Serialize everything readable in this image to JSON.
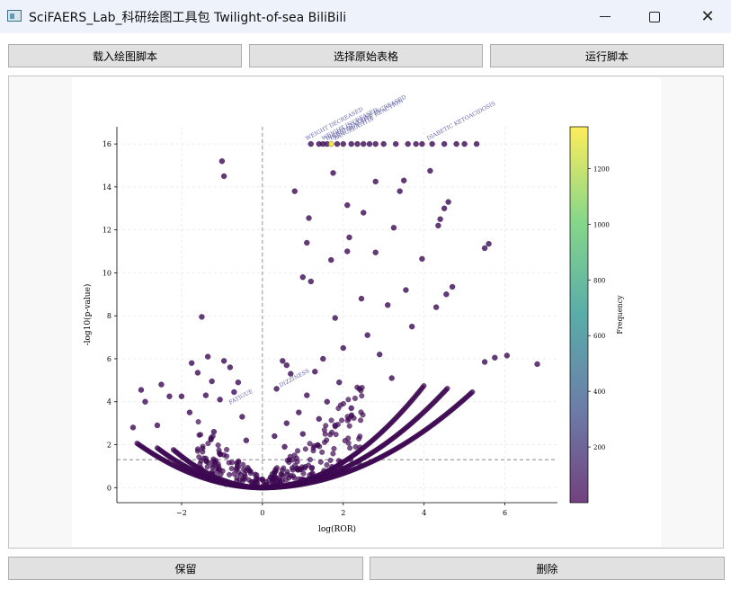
{
  "window": {
    "title": "SciFAERS_Lab_科研绘图工具包 Twilight-of-sea BiliBili",
    "minimize_icon": "minimize-icon",
    "maximize_icon": "maximize-icon",
    "close_icon": "close-icon"
  },
  "toolbar": {
    "load_script_label": "载入绘图脚本",
    "select_table_label": "选择原始表格",
    "run_script_label": "运行脚本"
  },
  "footer": {
    "save_label": "保留",
    "delete_label": "删除"
  },
  "chart_data": {
    "type": "scatter",
    "xlabel": "log(ROR)",
    "ylabel": "-log10(p-value)",
    "xlim": [
      -3.6,
      7.3
    ],
    "ylim": [
      -0.7,
      16.8
    ],
    "x_ticks": [
      -2,
      0,
      2,
      4,
      6
    ],
    "x_tick_labels": [
      "−2",
      "0",
      "2",
      "4",
      "6"
    ],
    "y_ticks": [
      0,
      2,
      4,
      6,
      8,
      10,
      12,
      14,
      16
    ],
    "grid": true,
    "colormap": "viridis",
    "colorbar": {
      "label": "Frequency",
      "ticks": [
        200,
        400,
        600,
        800,
        1000,
        1200
      ],
      "range": [
        0,
        1350
      ]
    },
    "reference_lines": {
      "vertical_x": 0,
      "horizontal_y": 1.3
    },
    "annotations": [
      {
        "text": "WEIGHT DECREASED",
        "x": 1.1,
        "y": 16
      },
      {
        "text": "WEIGHT INCREASED",
        "x": 1.5,
        "y": 16
      },
      {
        "text": "BLOOD GLUCOSE INCREASED",
        "x": 1.6,
        "y": 16
      },
      {
        "text": "INJECTION SITE REACTION",
        "x": 1.7,
        "y": 16
      },
      {
        "text": "PANCREATITIS",
        "x": 1.8,
        "y": 16
      },
      {
        "text": "DIABETIC KETOACIDOSIS",
        "x": 4.1,
        "y": 16
      },
      {
        "text": "DIZZINESS",
        "x": 0.45,
        "y": 4.5
      },
      {
        "text": "FATIGUE",
        "x": -0.8,
        "y": 3.7
      }
    ],
    "points": [
      {
        "x": 1.2,
        "y": 16,
        "f": 60
      },
      {
        "x": 1.4,
        "y": 16,
        "f": 60
      },
      {
        "x": 1.5,
        "y": 16,
        "f": 60
      },
      {
        "x": 1.6,
        "y": 16,
        "f": 80
      },
      {
        "x": 1.7,
        "y": 16,
        "f": 1320
      },
      {
        "x": 1.85,
        "y": 16,
        "f": 60
      },
      {
        "x": 2.0,
        "y": 16,
        "f": 60
      },
      {
        "x": 2.2,
        "y": 16,
        "f": 60
      },
      {
        "x": 2.35,
        "y": 16,
        "f": 60
      },
      {
        "x": 2.5,
        "y": 16,
        "f": 60
      },
      {
        "x": 2.65,
        "y": 16,
        "f": 60
      },
      {
        "x": 2.8,
        "y": 16,
        "f": 60
      },
      {
        "x": 3.0,
        "y": 16,
        "f": 60
      },
      {
        "x": 3.3,
        "y": 16,
        "f": 60
      },
      {
        "x": 3.6,
        "y": 16,
        "f": 60
      },
      {
        "x": 3.8,
        "y": 16,
        "f": 60
      },
      {
        "x": 3.95,
        "y": 16,
        "f": 60
      },
      {
        "x": 4.2,
        "y": 16,
        "f": 60
      },
      {
        "x": 4.5,
        "y": 16,
        "f": 60
      },
      {
        "x": 4.8,
        "y": 16,
        "f": 60
      },
      {
        "x": 5.0,
        "y": 16,
        "f": 60
      },
      {
        "x": 5.3,
        "y": 16,
        "f": 60
      },
      {
        "x": -1.0,
        "y": 15.2,
        "f": 60
      },
      {
        "x": -0.95,
        "y": 14.5,
        "f": 60
      },
      {
        "x": 1.75,
        "y": 14.65,
        "f": 60
      },
      {
        "x": 4.15,
        "y": 14.75,
        "f": 60
      },
      {
        "x": 3.5,
        "y": 14.3,
        "f": 60
      },
      {
        "x": 2.8,
        "y": 14.25,
        "f": 60
      },
      {
        "x": 0.8,
        "y": 13.8,
        "f": 60
      },
      {
        "x": 3.4,
        "y": 13.8,
        "f": 60
      },
      {
        "x": 2.1,
        "y": 13.15,
        "f": 60
      },
      {
        "x": 4.6,
        "y": 13.3,
        "f": 60
      },
      {
        "x": 4.5,
        "y": 13.0,
        "f": 60
      },
      {
        "x": 4.4,
        "y": 12.5,
        "f": 60
      },
      {
        "x": 2.5,
        "y": 12.8,
        "f": 60
      },
      {
        "x": 1.15,
        "y": 12.55,
        "f": 60
      },
      {
        "x": 4.35,
        "y": 12.2,
        "f": 60
      },
      {
        "x": 3.25,
        "y": 12.1,
        "f": 60
      },
      {
        "x": 2.15,
        "y": 11.65,
        "f": 60
      },
      {
        "x": 1.1,
        "y": 11.4,
        "f": 60
      },
      {
        "x": 5.6,
        "y": 11.35,
        "f": 60
      },
      {
        "x": 5.5,
        "y": 11.15,
        "f": 60
      },
      {
        "x": 2.1,
        "y": 11.0,
        "f": 60
      },
      {
        "x": 2.8,
        "y": 10.95,
        "f": 60
      },
      {
        "x": 1.7,
        "y": 10.6,
        "f": 60
      },
      {
        "x": 3.95,
        "y": 10.65,
        "f": 60
      },
      {
        "x": 1.0,
        "y": 9.8,
        "f": 60
      },
      {
        "x": 1.2,
        "y": 9.6,
        "f": 60
      },
      {
        "x": -1.5,
        "y": 7.95,
        "f": 60
      },
      {
        "x": -1.35,
        "y": 6.1,
        "f": 60
      },
      {
        "x": -1.75,
        "y": 5.8,
        "f": 60
      },
      {
        "x": -0.95,
        "y": 5.9,
        "f": 60
      },
      {
        "x": -0.8,
        "y": 5.6,
        "f": 60
      },
      {
        "x": -1.6,
        "y": 5.35,
        "f": 60
      },
      {
        "x": -1.25,
        "y": 4.95,
        "f": 60
      },
      {
        "x": -0.6,
        "y": 4.9,
        "f": 60
      },
      {
        "x": -2.5,
        "y": 4.8,
        "f": 60
      },
      {
        "x": -3.0,
        "y": 4.55,
        "f": 60
      },
      {
        "x": -2.3,
        "y": 4.25,
        "f": 60
      },
      {
        "x": -1.4,
        "y": 4.3,
        "f": 60
      },
      {
        "x": -0.7,
        "y": 4.45,
        "f": 60
      },
      {
        "x": -2.0,
        "y": 4.25,
        "f": 60
      },
      {
        "x": -2.9,
        "y": 4.0,
        "f": 60
      },
      {
        "x": -1.05,
        "y": 4.1,
        "f": 60
      },
      {
        "x": 0.5,
        "y": 5.9,
        "f": 60
      },
      {
        "x": 0.6,
        "y": 5.7,
        "f": 60
      },
      {
        "x": 0.7,
        "y": 5.3,
        "f": 60
      },
      {
        "x": 0.35,
        "y": 4.6,
        "f": 60
      },
      {
        "x": 6.05,
        "y": 6.15,
        "f": 60
      },
      {
        "x": 5.75,
        "y": 6.05,
        "f": 60
      },
      {
        "x": 6.8,
        "y": 5.75,
        "f": 60
      },
      {
        "x": 5.5,
        "y": 5.85,
        "f": 60
      },
      {
        "x": 3.55,
        "y": 9.2,
        "f": 60
      },
      {
        "x": 3.1,
        "y": 8.5,
        "f": 60
      },
      {
        "x": 2.45,
        "y": 8.8,
        "f": 60
      },
      {
        "x": 1.8,
        "y": 7.9,
        "f": 60
      },
      {
        "x": 2.6,
        "y": 7.1,
        "f": 60
      },
      {
        "x": 3.7,
        "y": 7.5,
        "f": 60
      },
      {
        "x": 4.3,
        "y": 8.4,
        "f": 60
      },
      {
        "x": 4.55,
        "y": 9.0,
        "f": 60
      },
      {
        "x": 4.7,
        "y": 9.35,
        "f": 60
      },
      {
        "x": 2.0,
        "y": 6.5,
        "f": 60
      },
      {
        "x": 2.9,
        "y": 6.2,
        "f": 60
      },
      {
        "x": 1.5,
        "y": 6.0,
        "f": 60
      },
      {
        "x": 1.3,
        "y": 5.4,
        "f": 60
      },
      {
        "x": 1.9,
        "y": 4.9,
        "f": 60
      },
      {
        "x": 2.4,
        "y": 4.6,
        "f": 60
      },
      {
        "x": 3.2,
        "y": 5.1,
        "f": 60
      },
      {
        "x": 1.1,
        "y": 4.3,
        "f": 60
      },
      {
        "x": 1.6,
        "y": 4.0,
        "f": 60
      },
      {
        "x": 2.2,
        "y": 3.7,
        "f": 60
      },
      {
        "x": 0.9,
        "y": 3.5,
        "f": 60
      },
      {
        "x": 1.4,
        "y": 3.2,
        "f": 60
      },
      {
        "x": 0.6,
        "y": 3.0,
        "f": 60
      },
      {
        "x": -0.5,
        "y": 3.3,
        "f": 60
      },
      {
        "x": -1.8,
        "y": 3.5,
        "f": 60
      },
      {
        "x": -2.6,
        "y": 2.9,
        "f": 60
      },
      {
        "x": -3.2,
        "y": 2.8,
        "f": 60
      },
      {
        "x": -1.2,
        "y": 2.6,
        "f": 60
      },
      {
        "x": -0.4,
        "y": 2.2,
        "f": 60
      },
      {
        "x": 0.3,
        "y": 2.4,
        "f": 60
      },
      {
        "x": 0.55,
        "y": 1.9,
        "f": 60
      },
      {
        "x": 1.0,
        "y": 2.5,
        "f": 60
      },
      {
        "x": 1.8,
        "y": 2.9,
        "f": 60
      }
    ]
  }
}
